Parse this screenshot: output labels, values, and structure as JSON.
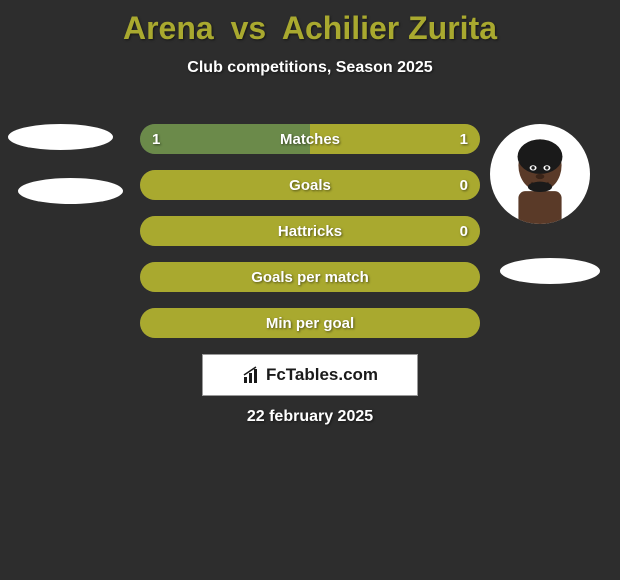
{
  "title": {
    "player1": "Arena",
    "vs": "vs",
    "player2": "Achilier Zurita",
    "color": "#a9a92f"
  },
  "subtitle": "Club competitions, Season 2025",
  "bar_colors": {
    "left_player_bar": "#6b8a4a",
    "right_player_bar": "#a9a92f",
    "neutral_bar": "#a9a92f",
    "background": "#2d2d2d"
  },
  "bars": [
    {
      "label": "Matches",
      "left_value": "1",
      "right_value": "1",
      "left_pct": 50,
      "right_pct": 50,
      "left_color": "#6b8a4a",
      "right_color": "#a9a92f"
    },
    {
      "label": "Goals",
      "left_value": "",
      "right_value": "0",
      "left_pct": 0,
      "right_pct": 100,
      "left_color": "#6b8a4a",
      "right_color": "#a9a92f"
    },
    {
      "label": "Hattricks",
      "left_value": "",
      "right_value": "0",
      "left_pct": 0,
      "right_pct": 100,
      "left_color": "#6b8a4a",
      "right_color": "#a9a92f"
    },
    {
      "label": "Goals per match",
      "left_value": "",
      "right_value": "",
      "left_pct": 0,
      "right_pct": 100,
      "left_color": "#6b8a4a",
      "right_color": "#a9a92f"
    },
    {
      "label": "Min per goal",
      "left_value": "",
      "right_value": "",
      "left_pct": 0,
      "right_pct": 100,
      "left_color": "#6b8a4a",
      "right_color": "#a9a92f"
    }
  ],
  "logo_text": "FcTables.com",
  "date": "22 february 2025"
}
